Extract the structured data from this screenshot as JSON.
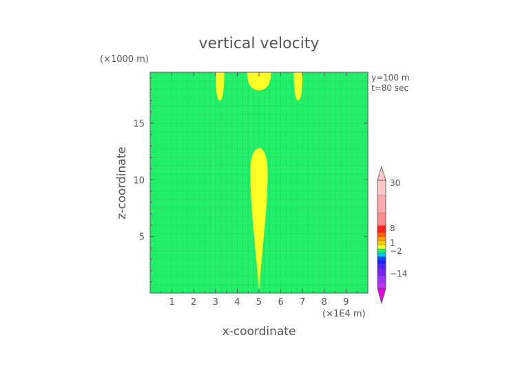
{
  "chart_data": {
    "type": "heatmap",
    "title": "vertical velocity",
    "xlabel": "x-coordinate",
    "ylabel": "z-coordinate",
    "x_unit": "(×1E4 m)",
    "y_unit": "(×1000 m)",
    "annotations": [
      "y=100 m",
      "t=80 sec"
    ],
    "xlim": [
      0,
      10
    ],
    "ylim": [
      0,
      19.5
    ],
    "xticks": [
      "1",
      "2",
      "3",
      "4",
      "5",
      "6",
      "7",
      "8",
      "9"
    ],
    "yticks": [
      "5",
      "10",
      "15"
    ],
    "background_color": "#22f06a",
    "regions": [
      {
        "shape": "plume",
        "color": "#ffff28",
        "x_center": 5.0,
        "x_halfwidth": 0.4,
        "z_bottom": 0.0,
        "z_top": 12.8
      },
      {
        "shape": "cap",
        "color": "#ffff28",
        "x_center": 5.0,
        "x_halfwidth": 0.55,
        "z_bottom": 17.9,
        "z_top": 19.5
      },
      {
        "shape": "cap",
        "color": "#ffff28",
        "x_center": 3.2,
        "x_halfwidth": 0.2,
        "z_bottom": 17.0,
        "z_top": 19.5
      },
      {
        "shape": "cap",
        "color": "#ffff28",
        "x_center": 6.8,
        "x_halfwidth": 0.2,
        "z_bottom": 17.0,
        "z_top": 19.5
      }
    ],
    "colorbar": {
      "labels": [
        "30",
        "8",
        "1",
        "−2",
        "−14"
      ],
      "colors": [
        "#ffc8c8",
        "#ffaaaa",
        "#ff8a8a",
        "#ff2020",
        "#ff5a00",
        "#ff9a00",
        "#ffd000",
        "#ffff28",
        "#22f06a",
        "#00c8ff",
        "#0050ff",
        "#2020ff",
        "#5020ff",
        "#7a20ff",
        "#a030ff",
        "#c030ff",
        "#e000e0"
      ]
    }
  }
}
